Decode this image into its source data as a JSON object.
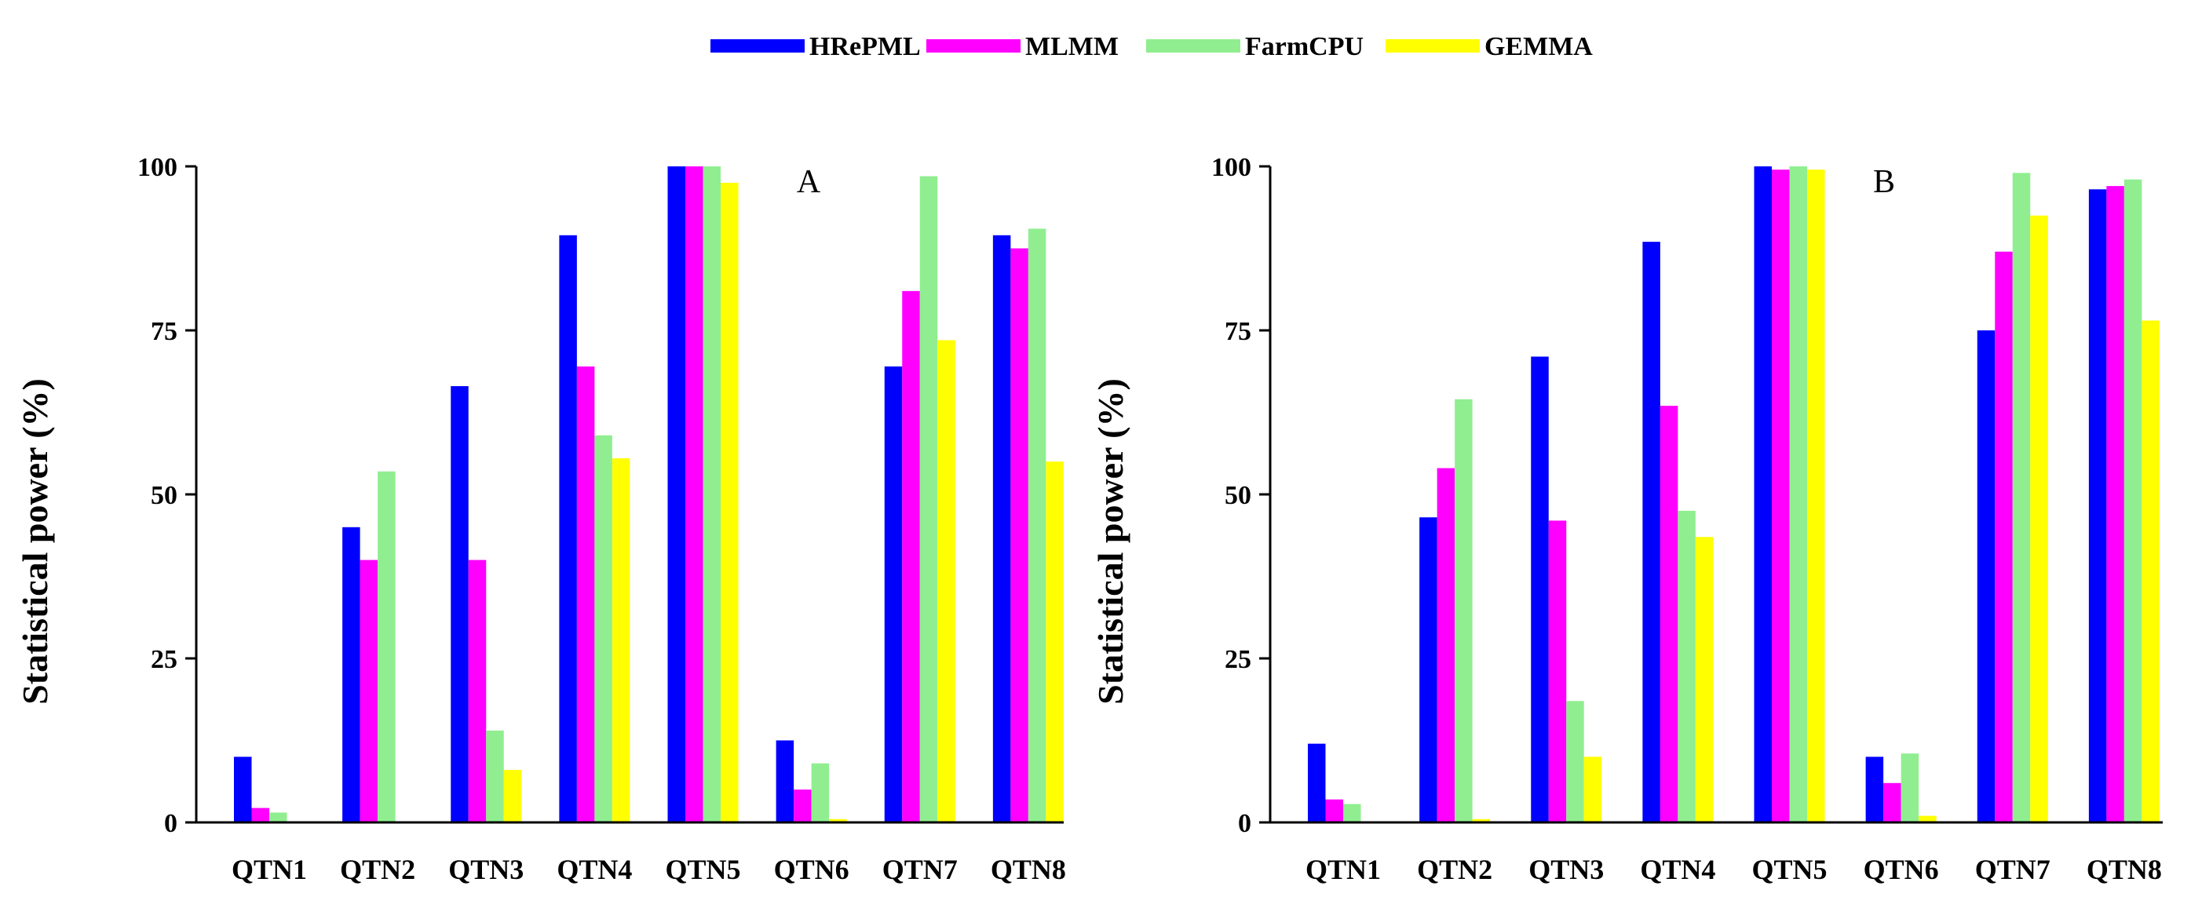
{
  "chart_data": [
    {
      "type": "bar",
      "panel_label": "A",
      "ylabel": "Statistical power (%)",
      "xlabel": "",
      "ylim": [
        0,
        100
      ],
      "yticks": [
        0,
        25,
        50,
        75,
        100
      ],
      "categories": [
        "QTN1",
        "QTN2",
        "QTN3",
        "QTN4",
        "QTN5",
        "QTN6",
        "QTN7",
        "QTN8"
      ],
      "series": [
        {
          "name": "HRePML",
          "values": [
            10,
            45,
            66.5,
            89.5,
            100,
            12.5,
            69.5,
            89.5
          ]
        },
        {
          "name": "MLMM",
          "values": [
            2.2,
            40,
            40,
            69.5,
            100,
            5,
            81,
            87.5
          ]
        },
        {
          "name": "FarmCPU",
          "values": [
            1.5,
            53.5,
            14,
            59,
            100,
            9,
            98.5,
            90.5
          ]
        },
        {
          "name": "GEMMA",
          "values": [
            0,
            0,
            8,
            55.5,
            97.5,
            0.5,
            73.5,
            55
          ]
        }
      ]
    },
    {
      "type": "bar",
      "panel_label": "B",
      "ylabel": "Statistical power (%)",
      "xlabel": "",
      "ylim": [
        0,
        100
      ],
      "yticks": [
        0,
        25,
        50,
        75,
        100
      ],
      "categories": [
        "QTN1",
        "QTN2",
        "QTN3",
        "QTN4",
        "QTN5",
        "QTN6",
        "QTN7",
        "QTN8"
      ],
      "series": [
        {
          "name": "HRePML",
          "values": [
            12,
            46.5,
            71,
            88.5,
            100,
            10,
            75,
            96.5
          ]
        },
        {
          "name": "MLMM",
          "values": [
            3.5,
            54,
            46,
            63.5,
            99.5,
            6,
            87,
            97
          ]
        },
        {
          "name": "FarmCPU",
          "values": [
            2.8,
            64.5,
            18.5,
            47.5,
            100,
            10.5,
            99,
            98
          ]
        },
        {
          "name": "GEMMA",
          "values": [
            0,
            0.5,
            10,
            43.5,
            99.5,
            1,
            92.5,
            76.5
          ]
        }
      ]
    }
  ],
  "legend": {
    "items": [
      {
        "label": "HRePML",
        "color": "#0000ff"
      },
      {
        "label": "MLMM",
        "color": "#ff00ff"
      },
      {
        "label": "FarmCPU",
        "color": "#90ee90"
      },
      {
        "label": "GEMMA",
        "color": "#ffff00"
      }
    ]
  }
}
